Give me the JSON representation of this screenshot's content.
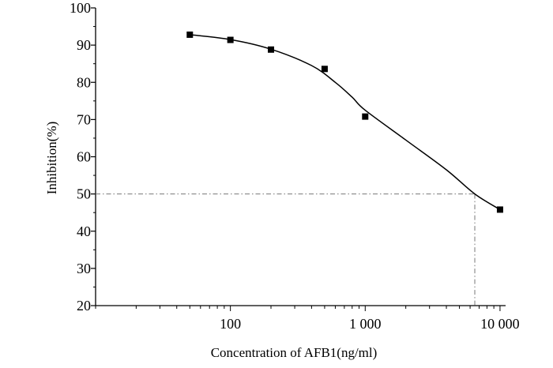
{
  "chart_data": {
    "type": "scatter",
    "xlabel": "Concentration of AFB1(ng/ml)",
    "ylabel": "Inhibition(%)",
    "xscale": "log",
    "xlim": [
      10,
      11000
    ],
    "ylim": [
      20,
      100
    ],
    "x_ticks": [
      {
        "value": 100,
        "label": "100"
      },
      {
        "value": 1000,
        "label": "1 000"
      },
      {
        "value": 10000,
        "label": "10 000"
      }
    ],
    "y_ticks": [
      {
        "value": 20,
        "label": "20"
      },
      {
        "value": 30,
        "label": "30"
      },
      {
        "value": 40,
        "label": "40"
      },
      {
        "value": 50,
        "label": "50"
      },
      {
        "value": 60,
        "label": "60"
      },
      {
        "value": 70,
        "label": "70"
      },
      {
        "value": 80,
        "label": "80"
      },
      {
        "value": 90,
        "label": "90"
      },
      {
        "value": 100,
        "label": "100"
      }
    ],
    "series": [
      {
        "points": [
          {
            "x": 50,
            "y": 92.8
          },
          {
            "x": 100,
            "y": 91.4
          },
          {
            "x": 200,
            "y": 88.8
          },
          {
            "x": 500,
            "y": 83.6
          },
          {
            "x": 1000,
            "y": 70.8
          },
          {
            "x": 10000,
            "y": 45.8
          }
        ]
      }
    ],
    "fit_curve": [
      {
        "x": 50,
        "y": 92.8
      },
      {
        "x": 100,
        "y": 91.5
      },
      {
        "x": 200,
        "y": 88.9
      },
      {
        "x": 400,
        "y": 84.5
      },
      {
        "x": 600,
        "y": 80.0
      },
      {
        "x": 800,
        "y": 76.0
      },
      {
        "x": 1000,
        "y": 72.5
      },
      {
        "x": 2000,
        "y": 64.5
      },
      {
        "x": 4000,
        "y": 56.5
      },
      {
        "x": 6500,
        "y": 50.0
      },
      {
        "x": 10000,
        "y": 45.8
      }
    ],
    "reference": {
      "y": 50,
      "x": 6500
    },
    "grid": false,
    "colors": {
      "marker": "#000000",
      "line": "#000000",
      "reference": "#777777"
    }
  }
}
